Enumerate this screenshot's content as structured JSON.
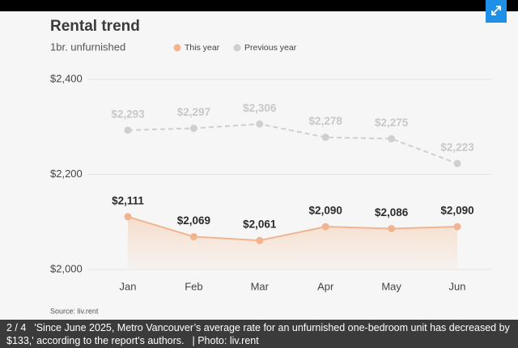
{
  "chart_data": {
    "type": "line",
    "title": "Rental trend",
    "subtitle": "1br. unfurnished",
    "categories": [
      "Jan",
      "Feb",
      "Mar",
      "Apr",
      "May",
      "Jun"
    ],
    "series": [
      {
        "name": "This year",
        "color": "#f0b590",
        "line_style": "solid",
        "area": true,
        "label_color": "#2b2b2b",
        "values": [
          2111,
          2069,
          2061,
          2090,
          2086,
          2090
        ],
        "value_labels": [
          "$2,111",
          "$2,069",
          "$2,061",
          "$2,090",
          "$2,086",
          "$2,090"
        ]
      },
      {
        "name": "Previous year",
        "color": "#cfcfcf",
        "line_style": "dashed",
        "area": false,
        "label_color": "#c8c8c8",
        "values": [
          2293,
          2297,
          2306,
          2278,
          2275,
          2223
        ],
        "value_labels": [
          "$2,293",
          "$2,297",
          "$2,306",
          "$2,278",
          "$2,275",
          "$2,223"
        ]
      }
    ],
    "ylim": [
      2000,
      2400
    ],
    "yticks": [
      {
        "value": 2000,
        "label": "$2,000"
      },
      {
        "value": 2200,
        "label": "$2,200"
      },
      {
        "value": 2400,
        "label": "$2,400"
      }
    ],
    "grid": true,
    "legend": "top",
    "source": "Source: liv.rent"
  },
  "gallery": {
    "counter": "2 / 4",
    "caption": "'Since June 2025, Metro Vancouver’s average rate for an unfurnished one-bedroom unit has decreased by $133,' according to the report's authors.",
    "credit": "| Photo: liv.rent"
  }
}
